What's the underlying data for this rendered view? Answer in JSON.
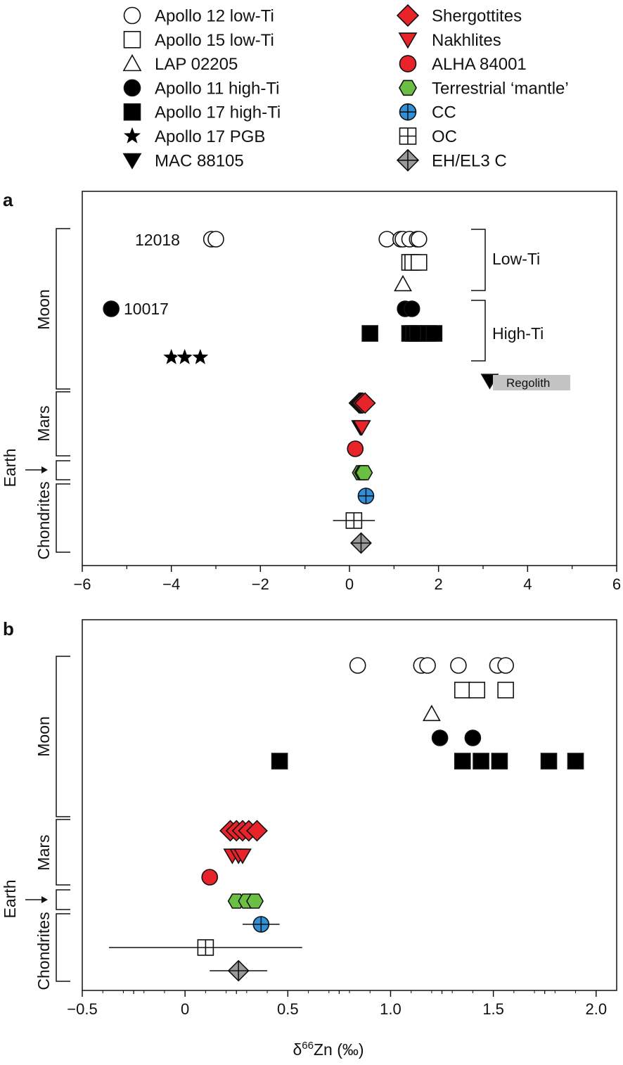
{
  "legend": [
    {
      "label": "Apollo 12 low-Ti",
      "marker": "circle",
      "fill": "#ffffff",
      "icon": "open-circle-icon"
    },
    {
      "label": "Apollo 15 low-Ti",
      "marker": "square",
      "fill": "#ffffff",
      "icon": "open-square-icon"
    },
    {
      "label": "LAP 02205",
      "marker": "triangle",
      "fill": "#ffffff",
      "icon": "open-triangle-icon"
    },
    {
      "label": "Apollo 11 high-Ti",
      "marker": "circle",
      "fill": "#000000",
      "icon": "filled-circle-icon"
    },
    {
      "label": "Apollo 17 high-Ti",
      "marker": "square",
      "fill": "#000000",
      "icon": "filled-square-icon"
    },
    {
      "label": "Apollo 17 PGB",
      "marker": "star",
      "fill": "#000000",
      "icon": "star-icon"
    },
    {
      "label": "MAC 88105",
      "marker": "tridown",
      "fill": "#000000",
      "icon": "filled-triangle-down-icon"
    },
    {
      "label": "Shergottites",
      "marker": "diamond",
      "fill": "#e8242a",
      "icon": "red-diamond-icon"
    },
    {
      "label": "Nakhlites",
      "marker": "tridown",
      "fill": "#e8242a",
      "icon": "red-triangle-down-icon"
    },
    {
      "label": "ALHA 84001",
      "marker": "circle",
      "fill": "#e8242a",
      "icon": "red-circle-icon"
    },
    {
      "label": "Terrestrial ‘mantle’",
      "marker": "hexagon",
      "fill": "#6cbf45",
      "icon": "green-hexagon-icon"
    },
    {
      "label": "CC",
      "marker": "circleplus",
      "fill": "#2f8fd8",
      "icon": "blue-circle-plus-icon"
    },
    {
      "label": "OC",
      "marker": "squareplus",
      "fill": "#ffffff",
      "icon": "square-plus-icon"
    },
    {
      "label": "EH/EL3 C",
      "marker": "diamondplus",
      "fill": "#9a9a9a",
      "icon": "grey-diamond-plus-icon"
    }
  ],
  "groups": {
    "moon": "Moon",
    "mars": "Mars",
    "earth": "Earth",
    "chondrites": "Chondrites"
  },
  "panel_a_annotations": {
    "sample_12018": "12018",
    "sample_10017": "10017",
    "low_ti": "Low-Ti",
    "high_ti": "High-Ti",
    "regolith": "Regolith"
  },
  "chart_data": [
    {
      "panel": "a",
      "type": "scatter",
      "xlabel": "",
      "xlim": [
        -6,
        6
      ],
      "xticks": [
        "−6",
        "−4",
        "−2",
        "0",
        "2",
        "4",
        "6"
      ],
      "series": [
        {
          "name": "Apollo 12 low-Ti",
          "marker": "circle",
          "fill": "#ffffff",
          "row": "A12",
          "x": [
            -3.1,
            -3.0,
            0.84,
            1.15,
            1.2,
            1.35,
            1.52,
            1.56
          ]
        },
        {
          "name": "Apollo 15 low-Ti",
          "marker": "square",
          "fill": "#ffffff",
          "row": "A15",
          "x": [
            1.35,
            1.42,
            1.56
          ]
        },
        {
          "name": "LAP 02205",
          "marker": "triangle",
          "fill": "#ffffff",
          "row": "LAP",
          "x": [
            1.2
          ]
        },
        {
          "name": "Apollo 11 high-Ti",
          "marker": "circle",
          "fill": "#000000",
          "row": "A11",
          "x": [
            -5.35,
            1.25,
            1.4
          ]
        },
        {
          "name": "Apollo 17 high-Ti",
          "marker": "square",
          "fill": "#000000",
          "row": "A17",
          "x": [
            0.46,
            1.35,
            1.44,
            1.53,
            1.77,
            1.9
          ]
        },
        {
          "name": "Apollo 17 PGB",
          "marker": "star",
          "fill": "#000000",
          "row": "PGB",
          "x": [
            -4.0,
            -3.7,
            -3.35
          ]
        },
        {
          "name": "MAC 88105",
          "marker": "tridown",
          "fill": "#000000",
          "row": "MAC",
          "x": [
            3.15
          ]
        },
        {
          "name": "Shergottites",
          "marker": "diamond",
          "fill": "#e8242a",
          "row": "SHE",
          "x": [
            0.22,
            0.25,
            0.27,
            0.3,
            0.35
          ]
        },
        {
          "name": "Nakhlites",
          "marker": "tridown",
          "fill": "#e8242a",
          "row": "NAK",
          "x": [
            0.24,
            0.26,
            0.28
          ]
        },
        {
          "name": "ALHA 84001",
          "marker": "circle",
          "fill": "#e8242a",
          "row": "ALH",
          "x": [
            0.13
          ]
        },
        {
          "name": "Terrestrial ‘mantle’",
          "marker": "hexagon",
          "fill": "#6cbf45",
          "row": "TER",
          "x": [
            0.25,
            0.3,
            0.33
          ]
        },
        {
          "name": "CC",
          "marker": "circleplus",
          "fill": "#2f8fd8",
          "row": "CC",
          "x": [
            0.37
          ],
          "err": [
            0.09
          ]
        },
        {
          "name": "OC",
          "marker": "squareplus",
          "fill": "#ffffff",
          "row": "OC",
          "x": [
            0.1
          ],
          "err": [
            0.47
          ]
        },
        {
          "name": "EH/EL3 C",
          "marker": "diamondplus",
          "fill": "#9a9a9a",
          "row": "EH",
          "x": [
            0.26
          ],
          "err": [
            0.2
          ]
        }
      ]
    },
    {
      "panel": "b",
      "type": "scatter",
      "xlabel": "δ⁶⁶Zn (‰)",
      "xlim": [
        -0.5,
        2.1
      ],
      "xticks": [
        "−0.5",
        "0",
        "0.5",
        "1.0",
        "1.5",
        "2.0"
      ],
      "series": [
        {
          "name": "Apollo 12 low-Ti",
          "marker": "circle",
          "fill": "#ffffff",
          "row": "A12",
          "x": [
            0.84,
            1.15,
            1.18,
            1.33,
            1.52,
            1.56
          ]
        },
        {
          "name": "Apollo 15 low-Ti",
          "marker": "square",
          "fill": "#ffffff",
          "row": "A15",
          "x": [
            1.35,
            1.42,
            1.56
          ]
        },
        {
          "name": "LAP 02205",
          "marker": "triangle",
          "fill": "#ffffff",
          "row": "LAP",
          "x": [
            1.2
          ]
        },
        {
          "name": "Apollo 11 high-Ti",
          "marker": "circle",
          "fill": "#000000",
          "row": "A11",
          "x": [
            1.24,
            1.4
          ]
        },
        {
          "name": "Apollo 17 high-Ti",
          "marker": "square",
          "fill": "#000000",
          "row": "A17",
          "x": [
            0.46,
            1.35,
            1.44,
            1.53,
            1.77,
            1.9
          ]
        },
        {
          "name": "Shergottites",
          "marker": "diamond",
          "fill": "#e8242a",
          "row": "SHE",
          "x": [
            0.22,
            0.25,
            0.28,
            0.31,
            0.35
          ]
        },
        {
          "name": "Nakhlites",
          "marker": "tridown",
          "fill": "#e8242a",
          "row": "NAK",
          "x": [
            0.23,
            0.26,
            0.28
          ]
        },
        {
          "name": "ALHA 84001",
          "marker": "circle",
          "fill": "#e8242a",
          "row": "ALH",
          "x": [
            0.12
          ]
        },
        {
          "name": "Terrestrial ‘mantle’",
          "marker": "hexagon",
          "fill": "#6cbf45",
          "row": "TER",
          "x": [
            0.25,
            0.3,
            0.34
          ]
        },
        {
          "name": "CC",
          "marker": "circleplus",
          "fill": "#2f8fd8",
          "row": "CC",
          "x": [
            0.37
          ],
          "err": [
            0.09
          ]
        },
        {
          "name": "OC",
          "marker": "squareplus",
          "fill": "#ffffff",
          "row": "OC",
          "x": [
            0.1
          ],
          "err": [
            0.47
          ]
        },
        {
          "name": "EH/EL3 C",
          "marker": "diamondplus",
          "fill": "#9a9a9a",
          "row": "EH",
          "x": [
            0.26
          ],
          "err": [
            0.14
          ]
        }
      ]
    }
  ]
}
